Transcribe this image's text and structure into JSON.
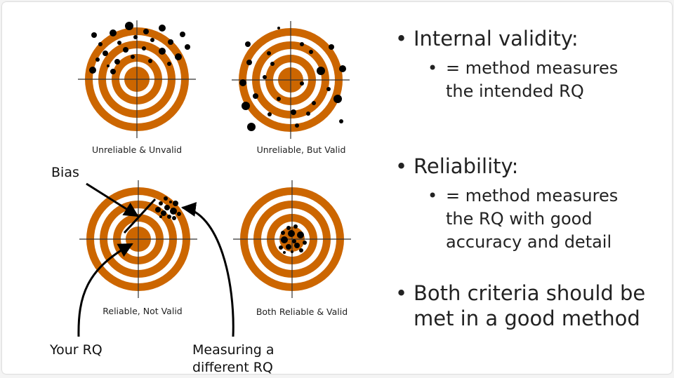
{
  "targets": [
    {
      "caption": "Unreliable & Unvalid"
    },
    {
      "caption": "Unreliable, But Valid"
    },
    {
      "caption": "Reliable, Not Valid"
    },
    {
      "caption": "Both Reliable & Valid"
    }
  ],
  "annotations": {
    "bias": "Bias",
    "your_rq": "Your RQ",
    "different_rq_line1": "Measuring a",
    "different_rq_line2": "different RQ"
  },
  "bullets": [
    {
      "title": "Internal validity:",
      "sub": [
        "= method measures",
        "the intended RQ"
      ]
    },
    {
      "title": "Reliability:",
      "sub": [
        "= method measures",
        "the RQ with good",
        "accuracy and detail"
      ]
    },
    {
      "title": [
        "Both criteria should be",
        "met in a good method"
      ],
      "sub": []
    }
  ],
  "colors": {
    "ring": "#cc6600",
    "dot": "#000000",
    "crosshair": "#333333"
  }
}
